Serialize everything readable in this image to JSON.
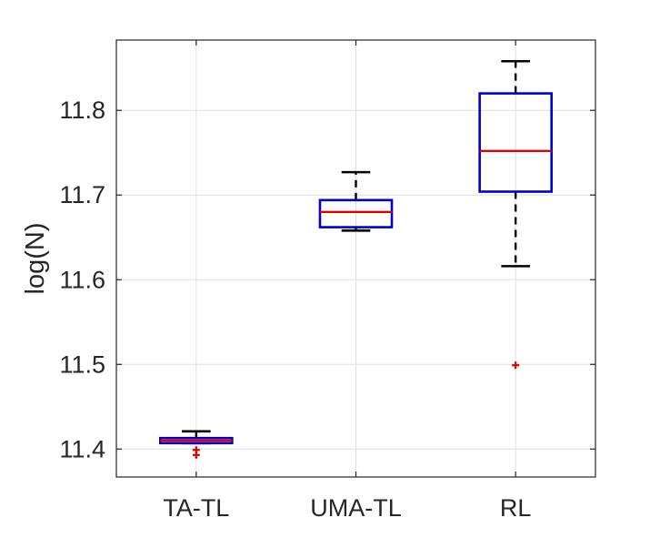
{
  "chart_data": {
    "type": "box",
    "title": "",
    "xlabel": "",
    "ylabel": "log(N)",
    "ylim": [
      11.367,
      11.883
    ],
    "yticks": [
      {
        "value": 11.4,
        "label": "11.4"
      },
      {
        "value": 11.5,
        "label": "11.5"
      },
      {
        "value": 11.6,
        "label": "11.6"
      },
      {
        "value": 11.7,
        "label": "11.7"
      },
      {
        "value": 11.8,
        "label": "11.8"
      }
    ],
    "grid": true,
    "categories": [
      "TA-TL",
      "UMA-TL",
      "RL"
    ],
    "boxes": [
      {
        "category": "TA-TL",
        "whisker_low": 11.407,
        "q1": 11.407,
        "median": 11.41,
        "q3": 11.413,
        "whisker_high": 11.421,
        "outliers": [
          11.399,
          11.393
        ]
      },
      {
        "category": "UMA-TL",
        "whisker_low": 11.658,
        "q1": 11.662,
        "median": 11.68,
        "q3": 11.694,
        "whisker_high": 11.727,
        "outliers": []
      },
      {
        "category": "RL",
        "whisker_low": 11.616,
        "q1": 11.704,
        "median": 11.752,
        "q3": 11.82,
        "whisker_high": 11.858,
        "outliers": [
          11.499
        ]
      }
    ],
    "colors": {
      "box": "#0000cc",
      "median": "#e00000",
      "whisker": "#000000",
      "outlier": "#e00000",
      "grid": "#dfdfdf",
      "axis": "#262626"
    }
  }
}
